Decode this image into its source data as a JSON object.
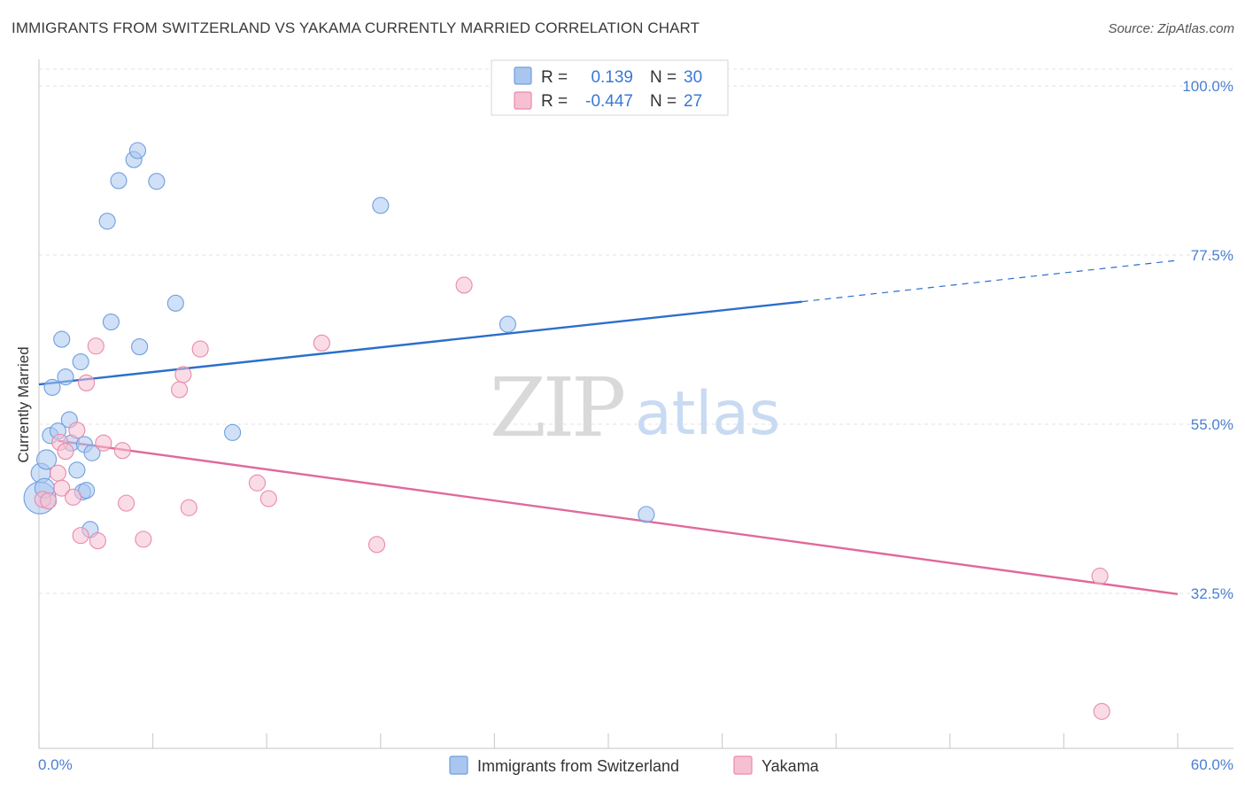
{
  "header": {
    "title": "IMMIGRANTS FROM SWITZERLAND VS YAKAMA CURRENTLY MARRIED CORRELATION CHART",
    "source": "Source: ZipAtlas.com"
  },
  "watermark": {
    "zip": "ZIP",
    "atlas": "atlas"
  },
  "legend": {
    "rows": [
      {
        "r_label": "R =",
        "r_value": "0.139",
        "n_label": "N =",
        "n_value": "30",
        "color": "#a9c6ee",
        "stroke": "#6f9fe0"
      },
      {
        "r_label": "R =",
        "r_value": "-0.447",
        "n_label": "N =",
        "n_value": "27",
        "color": "#f6c0d2",
        "stroke": "#e98aab"
      }
    ]
  },
  "bottom_legend": [
    {
      "label": "Immigrants from Switzerland",
      "color": "#a9c6ee",
      "stroke": "#6f9fe0"
    },
    {
      "label": "Yakama",
      "color": "#f6c0d2",
      "stroke": "#e98aab"
    }
  ],
  "chart_data": {
    "type": "scatter",
    "ylabel": "Currently Married",
    "xlim": [
      0,
      60
    ],
    "ylim": [
      0,
      100
    ],
    "x_tick_labels": [
      "0.0%",
      "60.0%"
    ],
    "y_ticks": [
      {
        "value": 100.0,
        "label": "100.0%"
      },
      {
        "value": 77.5,
        "label": "77.5%"
      },
      {
        "value": 55.0,
        "label": "55.0%"
      },
      {
        "value": 32.5,
        "label": "32.5%"
      }
    ],
    "grid": true,
    "series": [
      {
        "name": "Immigrants from Switzerland",
        "color": "#6f9fe0",
        "fill": "#a9c6ee",
        "trend_color": "#2b6fcc",
        "trend": {
          "x0": 0,
          "y0": 60.3,
          "x1": 40.2,
          "y1": 71.3,
          "x_dash_end": 60,
          "y_dash_end": 76.8
        },
        "points": [
          [
            0.1,
            48.5
          ],
          [
            0.4,
            50.3
          ],
          [
            0.6,
            53.5
          ],
          [
            0.7,
            59.9
          ],
          [
            1.0,
            54.1
          ],
          [
            1.2,
            66.3
          ],
          [
            1.4,
            61.3
          ],
          [
            1.6,
            55.6
          ],
          [
            1.7,
            52.5
          ],
          [
            2.0,
            48.9
          ],
          [
            2.2,
            63.3
          ],
          [
            2.3,
            46.0
          ],
          [
            2.4,
            52.3
          ],
          [
            2.5,
            46.2
          ],
          [
            2.7,
            41.0
          ],
          [
            2.8,
            51.2
          ],
          [
            3.6,
            82.0
          ],
          [
            3.8,
            68.6
          ],
          [
            4.2,
            87.4
          ],
          [
            5.0,
            90.2
          ],
          [
            5.2,
            91.4
          ],
          [
            5.3,
            65.3
          ],
          [
            6.2,
            87.3
          ],
          [
            7.2,
            71.1
          ],
          [
            10.2,
            53.9
          ],
          [
            18.0,
            84.1
          ],
          [
            24.7,
            68.3
          ],
          [
            32.0,
            43.0
          ],
          [
            0.05,
            45.2
          ],
          [
            0.3,
            46.5
          ]
        ],
        "point_sizes": [
          11,
          11,
          9,
          9,
          9,
          9,
          9,
          9,
          9,
          9,
          9,
          9,
          9,
          9,
          9,
          9,
          9,
          9,
          9,
          9,
          9,
          9,
          9,
          9,
          9,
          9,
          9,
          9,
          18,
          11
        ]
      },
      {
        "name": "Yakama",
        "color": "#e98aab",
        "fill": "#f6c0d2",
        "trend_color": "#e0699a",
        "trend": {
          "x0": 1.0,
          "y0": 52.8,
          "x1": 60,
          "y1": 32.4
        },
        "points": [
          [
            0.2,
            45.0
          ],
          [
            0.5,
            44.8
          ],
          [
            1.0,
            48.5
          ],
          [
            1.1,
            52.6
          ],
          [
            1.2,
            46.5
          ],
          [
            1.4,
            51.4
          ],
          [
            1.8,
            45.3
          ],
          [
            2.0,
            54.2
          ],
          [
            2.2,
            40.2
          ],
          [
            2.5,
            60.5
          ],
          [
            3.0,
            65.4
          ],
          [
            3.1,
            39.5
          ],
          [
            3.4,
            52.5
          ],
          [
            4.4,
            51.5
          ],
          [
            4.6,
            44.5
          ],
          [
            5.5,
            39.7
          ],
          [
            7.4,
            59.6
          ],
          [
            7.6,
            61.6
          ],
          [
            7.9,
            43.9
          ],
          [
            8.5,
            65.0
          ],
          [
            11.5,
            47.2
          ],
          [
            12.1,
            45.1
          ],
          [
            14.9,
            65.8
          ],
          [
            17.8,
            39.0
          ],
          [
            22.4,
            73.5
          ],
          [
            55.9,
            34.8
          ],
          [
            56.0,
            16.8
          ]
        ]
      }
    ]
  }
}
